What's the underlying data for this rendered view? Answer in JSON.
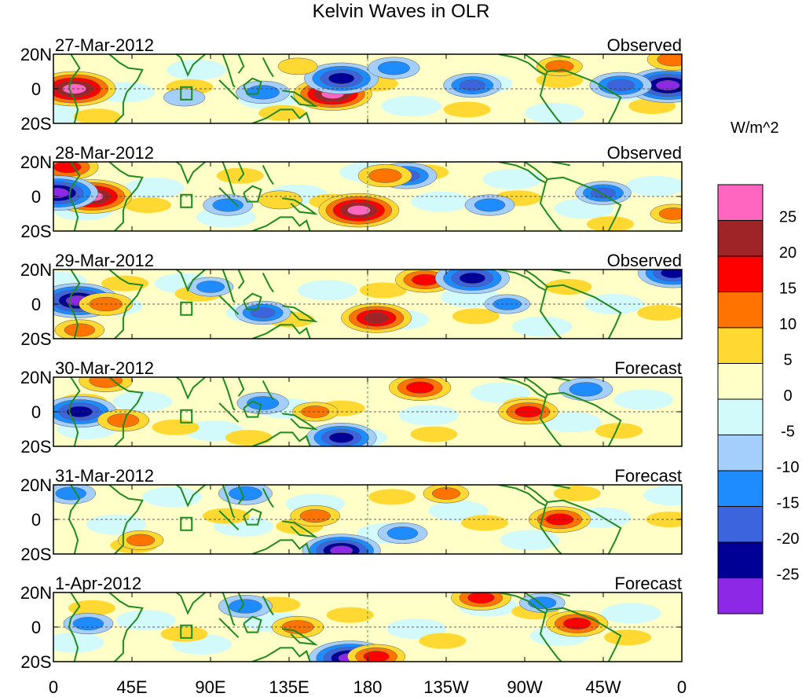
{
  "chart_data": {
    "type": "heatmap",
    "title": "Kelvin Waves in OLR",
    "units": "W/m^2",
    "x_ticks": [
      "0",
      "45E",
      "90E",
      "135E",
      "180",
      "135W",
      "90W",
      "45W",
      "0"
    ],
    "y_ticks": [
      "20N",
      "0",
      "20S"
    ],
    "xlim": [
      0,
      360
    ],
    "ylim": [
      -20,
      20
    ],
    "colorbar": {
      "levels": [
        "25",
        "20",
        "15",
        "10",
        "5",
        "0",
        "-5",
        "-10",
        "-15",
        "-20",
        "-25"
      ],
      "colors": [
        "#ff66c0",
        "#9e2428",
        "#ff0000",
        "#ff7400",
        "#ffd831",
        "#ffffc8",
        "#d2fafa",
        "#a4cffd",
        "#1e8cff",
        "#3c64dc",
        "#000096",
        "#8c28e6"
      ]
    },
    "panels": [
      {
        "date": "27-Mar-2012",
        "type": "Observed",
        "anomalies": [
          {
            "lon": 12,
            "lat": 0,
            "value": 28
          },
          {
            "lon": 160,
            "lat": -3,
            "value": 26
          },
          {
            "lon": 165,
            "lat": 6,
            "value": -24
          },
          {
            "lon": 352,
            "lat": 2,
            "value": -28
          },
          {
            "lon": 325,
            "lat": 2,
            "value": -18
          },
          {
            "lon": 240,
            "lat": 2,
            "value": -16
          },
          {
            "lon": 75,
            "lat": -5,
            "value": -8
          },
          {
            "lon": 120,
            "lat": -2,
            "value": -14
          },
          {
            "lon": 195,
            "lat": 12,
            "value": -13
          },
          {
            "lon": 290,
            "lat": 13,
            "value": 10
          },
          {
            "lon": 355,
            "lat": 17,
            "value": 13
          },
          {
            "lon": 140,
            "lat": 13,
            "value": 7
          }
        ]
      },
      {
        "date": "28-Mar-2012",
        "type": "Observed",
        "anomalies": [
          {
            "lon": 22,
            "lat": 0,
            "value": 27
          },
          {
            "lon": 175,
            "lat": -8,
            "value": 27
          },
          {
            "lon": 8,
            "lat": 17,
            "value": 18
          },
          {
            "lon": 2,
            "lat": 2,
            "value": -28
          },
          {
            "lon": 202,
            "lat": 12,
            "value": -18
          },
          {
            "lon": 315,
            "lat": 2,
            "value": -15
          },
          {
            "lon": 250,
            "lat": -5,
            "value": -12
          },
          {
            "lon": 100,
            "lat": -5,
            "value": -12
          },
          {
            "lon": 190,
            "lat": 12,
            "value": 14
          },
          {
            "lon": 355,
            "lat": -10,
            "value": 10
          },
          {
            "lon": 130,
            "lat": -2,
            "value": 9
          }
        ]
      },
      {
        "date": "29-Mar-2012",
        "type": "Observed",
        "anomalies": [
          {
            "lon": 14,
            "lat": 2,
            "value": -28
          },
          {
            "lon": 185,
            "lat": -8,
            "value": 22
          },
          {
            "lon": 213,
            "lat": 14,
            "value": 17
          },
          {
            "lon": 240,
            "lat": 15,
            "value": -24
          },
          {
            "lon": 30,
            "lat": 0,
            "value": 14
          },
          {
            "lon": 15,
            "lat": -15,
            "value": 12
          },
          {
            "lon": 120,
            "lat": -5,
            "value": -15
          },
          {
            "lon": 260,
            "lat": 0,
            "value": -10
          },
          {
            "lon": 355,
            "lat": 18,
            "value": -22
          },
          {
            "lon": 90,
            "lat": 10,
            "value": -10
          }
        ]
      },
      {
        "date": "30-Mar-2012",
        "type": "Forecast",
        "anomalies": [
          {
            "lon": 15,
            "lat": 0,
            "value": -24
          },
          {
            "lon": 210,
            "lat": 14,
            "value": 18
          },
          {
            "lon": 272,
            "lat": 0,
            "value": 17
          },
          {
            "lon": 40,
            "lat": -5,
            "value": 13
          },
          {
            "lon": 30,
            "lat": 18,
            "value": 14
          },
          {
            "lon": 165,
            "lat": -15,
            "value": -22
          },
          {
            "lon": 305,
            "lat": 13,
            "value": -14
          },
          {
            "lon": 120,
            "lat": 5,
            "value": -13
          },
          {
            "lon": 150,
            "lat": 0,
            "value": 10
          }
        ]
      },
      {
        "date": "31-Mar-2012",
        "type": "Forecast",
        "anomalies": [
          {
            "lon": 290,
            "lat": 0,
            "value": 18
          },
          {
            "lon": 165,
            "lat": -18,
            "value": -26
          },
          {
            "lon": 150,
            "lat": 2,
            "value": 12
          },
          {
            "lon": 110,
            "lat": 15,
            "value": -14
          },
          {
            "lon": 10,
            "lat": 15,
            "value": -12
          },
          {
            "lon": 225,
            "lat": 15,
            "value": 10
          },
          {
            "lon": 200,
            "lat": -8,
            "value": -12
          },
          {
            "lon": 50,
            "lat": -12,
            "value": 10
          }
        ]
      },
      {
        "date": "1-Apr-2012",
        "type": "Forecast",
        "anomalies": [
          {
            "lon": 300,
            "lat": 2,
            "value": 18
          },
          {
            "lon": 170,
            "lat": -18,
            "value": -28
          },
          {
            "lon": 140,
            "lat": 0,
            "value": 13
          },
          {
            "lon": 245,
            "lat": 17,
            "value": 17
          },
          {
            "lon": 110,
            "lat": 12,
            "value": -14
          },
          {
            "lon": 185,
            "lat": -17,
            "value": 16
          },
          {
            "lon": 20,
            "lat": 2,
            "value": -12
          },
          {
            "lon": 280,
            "lat": 14,
            "value": -10
          }
        ]
      }
    ]
  }
}
